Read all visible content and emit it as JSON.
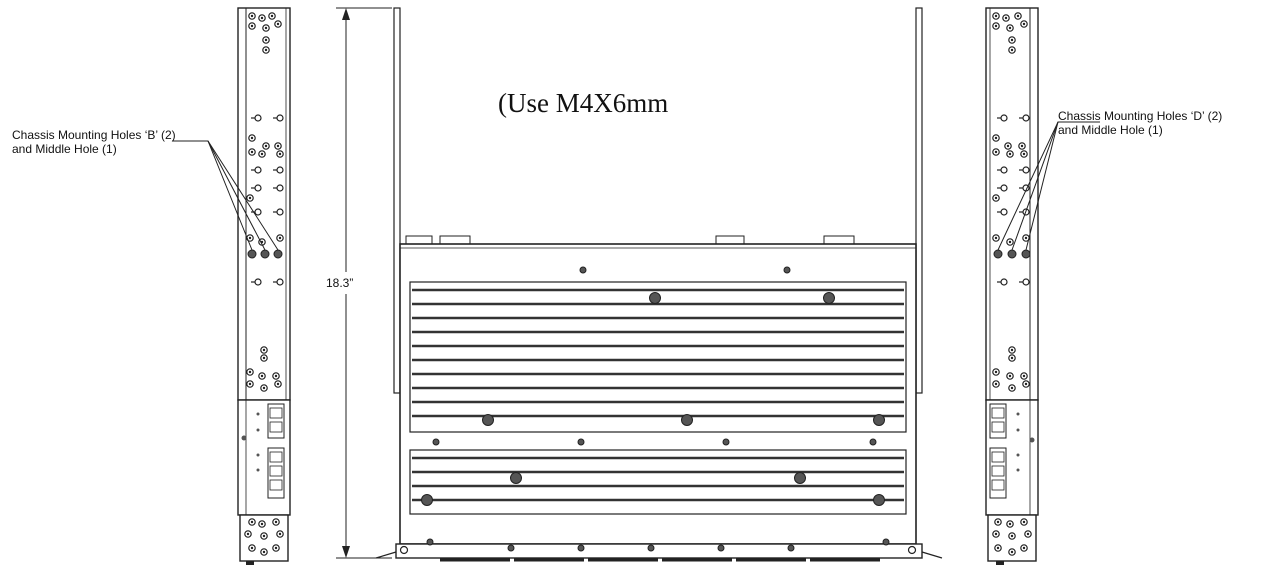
{
  "callouts": {
    "left": {
      "line1": "Chassis Mounting Holes ‘B’ (2)",
      "line2": "and Middle Hole (1)"
    },
    "right": {
      "line1": "Chassis Mounting Holes ‘D’ (2)",
      "line2": "and Middle Hole (1)"
    }
  },
  "instruction": "(Use M4X6mm",
  "dimension": "18.3”"
}
